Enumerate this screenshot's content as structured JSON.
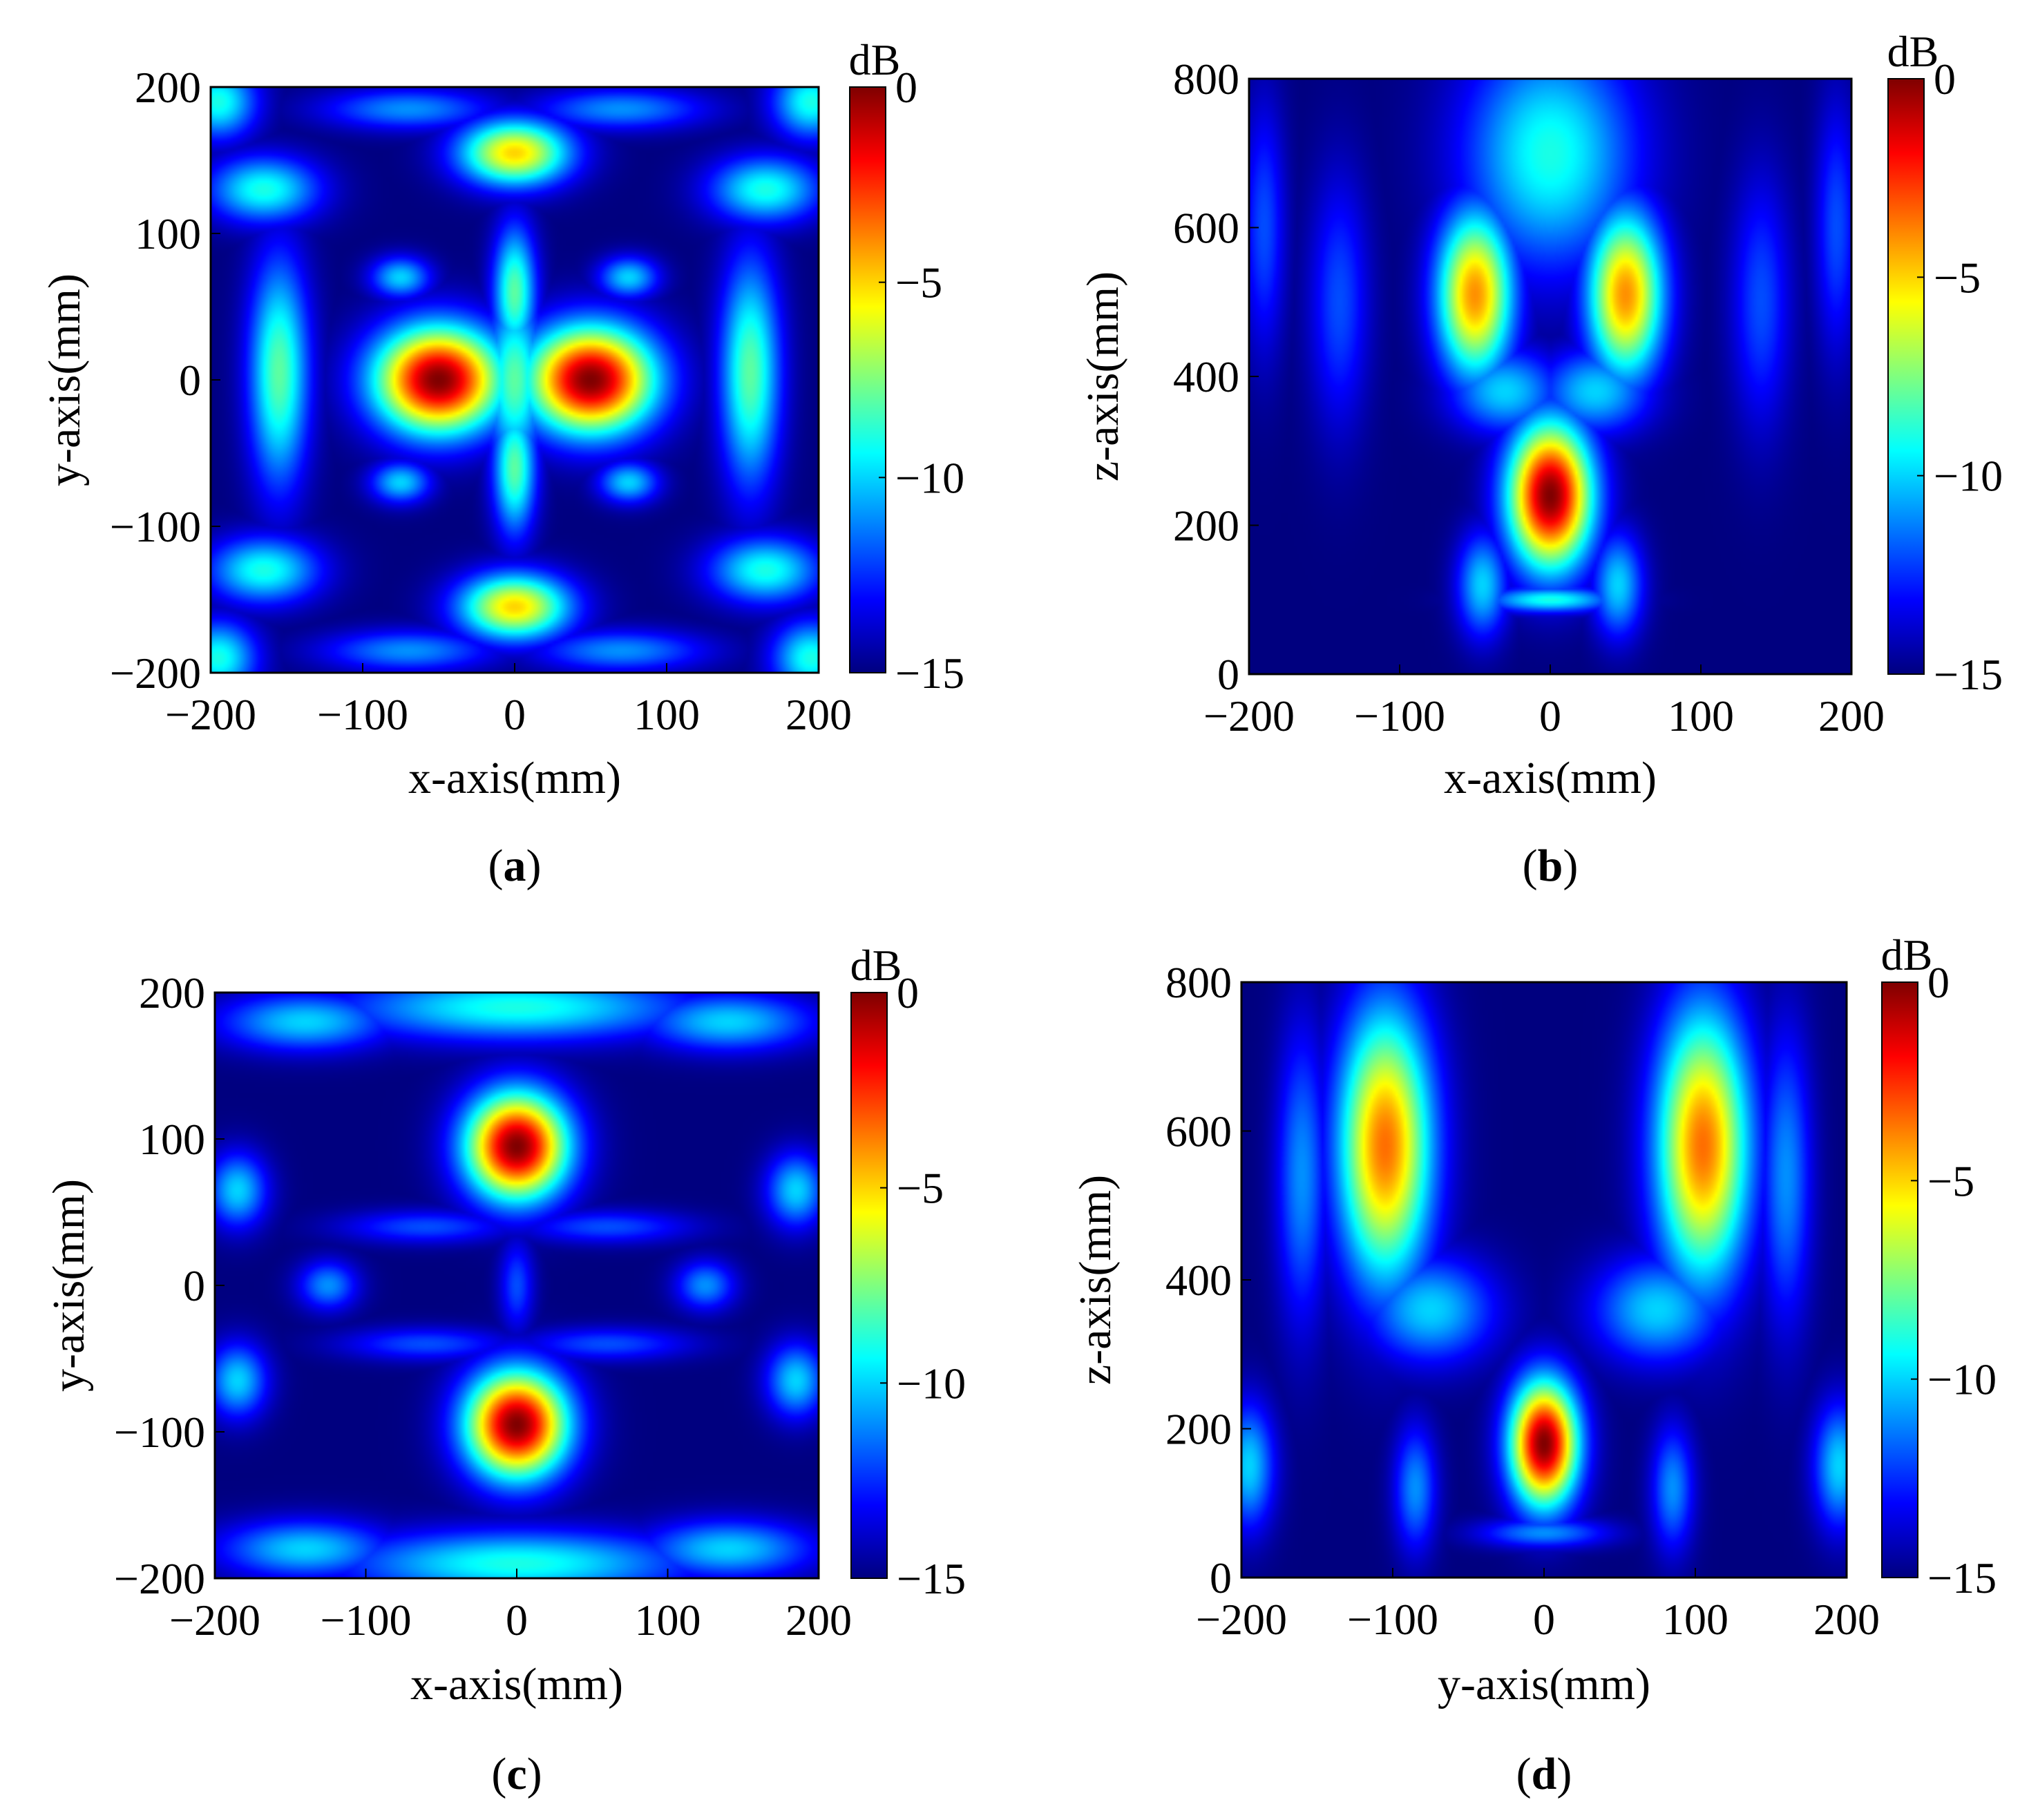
{
  "colormap": {
    "name": "jet",
    "stops": [
      "#00007f",
      "#0000ff",
      "#007fff",
      "#00ffff",
      "#7fff7f",
      "#ffff00",
      "#ff7f00",
      "#ff0000",
      "#7f0000"
    ]
  },
  "chart_data": [
    {
      "type": "heatmap",
      "panel_label": "(a)",
      "panel_letter": "a",
      "xlabel": "x-axis(mm)",
      "ylabel": "y-axis(mm)",
      "xlim": [
        -200,
        200
      ],
      "ylim": [
        -200,
        200
      ],
      "xticks": [
        -200,
        -100,
        0,
        100,
        200
      ],
      "yticks": [
        -200,
        -100,
        0,
        100,
        200
      ],
      "xtick_labels": [
        "−200",
        "−100",
        "0",
        "100",
        "200"
      ],
      "ytick_labels": [
        "−200",
        "−100",
        "0",
        "100",
        "200"
      ],
      "colorbar": {
        "label": "dB",
        "range": [
          -15,
          0
        ],
        "ticks": [
          0,
          -5,
          -10,
          -15
        ],
        "tick_labels": [
          "0",
          "−5",
          "−10",
          "−15"
        ]
      },
      "background_db": -15,
      "features": [
        {
          "x": -50,
          "y": 0,
          "sx": 30,
          "sy": 26,
          "db": 0
        },
        {
          "x": 50,
          "y": 0,
          "sx": 30,
          "sy": 26,
          "db": 0
        },
        {
          "x": 0,
          "y": 155,
          "sx": 26,
          "sy": 16,
          "db": -5
        },
        {
          "x": 0,
          "y": -155,
          "sx": 26,
          "sy": 16,
          "db": -5
        },
        {
          "x": 0,
          "y": 60,
          "sx": 10,
          "sy": 32,
          "db": -8
        },
        {
          "x": 0,
          "y": -60,
          "sx": 10,
          "sy": 32,
          "db": -8
        },
        {
          "x": 0,
          "y": 0,
          "sx": 14,
          "sy": 40,
          "db": -8
        },
        {
          "x": -155,
          "y": 5,
          "sx": 14,
          "sy": 55,
          "db": -8
        },
        {
          "x": 155,
          "y": 5,
          "sx": 14,
          "sy": 55,
          "db": -8
        },
        {
          "x": -75,
          "y": 70,
          "sx": 14,
          "sy": 10,
          "db": -10
        },
        {
          "x": 75,
          "y": 70,
          "sx": 14,
          "sy": 10,
          "db": -10
        },
        {
          "x": -75,
          "y": -70,
          "sx": 14,
          "sy": 10,
          "db": -10
        },
        {
          "x": 75,
          "y": -70,
          "sx": 14,
          "sy": 10,
          "db": -10
        },
        {
          "x": -165,
          "y": 130,
          "sx": 26,
          "sy": 16,
          "db": -9
        },
        {
          "x": 165,
          "y": 130,
          "sx": 26,
          "sy": 16,
          "db": -9
        },
        {
          "x": -165,
          "y": -130,
          "sx": 26,
          "sy": 16,
          "db": -9
        },
        {
          "x": 165,
          "y": -130,
          "sx": 26,
          "sy": 16,
          "db": -9
        },
        {
          "x": -70,
          "y": 185,
          "sx": 40,
          "sy": 10,
          "db": -11
        },
        {
          "x": 70,
          "y": 185,
          "sx": 40,
          "sy": 10,
          "db": -11
        },
        {
          "x": -70,
          "y": -185,
          "sx": 40,
          "sy": 10,
          "db": -11
        },
        {
          "x": 70,
          "y": -185,
          "sx": 40,
          "sy": 10,
          "db": -11
        },
        {
          "x": -195,
          "y": 190,
          "sx": 18,
          "sy": 18,
          "db": -9
        },
        {
          "x": 195,
          "y": 190,
          "sx": 18,
          "sy": 18,
          "db": -9
        },
        {
          "x": -195,
          "y": -190,
          "sx": 18,
          "sy": 18,
          "db": -9
        },
        {
          "x": 195,
          "y": -190,
          "sx": 18,
          "sy": 18,
          "db": -9
        }
      ]
    },
    {
      "type": "heatmap",
      "panel_label": "(b)",
      "panel_letter": "b",
      "xlabel": "x-axis(mm)",
      "ylabel": "z-axis(mm)",
      "xlim": [
        -200,
        200
      ],
      "ylim": [
        0,
        800
      ],
      "xticks": [
        -200,
        -100,
        0,
        100,
        200
      ],
      "yticks": [
        0,
        200,
        400,
        600,
        800
      ],
      "xtick_labels": [
        "−200",
        "−100",
        "0",
        "100",
        "200"
      ],
      "ytick_labels": [
        "0",
        "200",
        "400",
        "600",
        "800"
      ],
      "colorbar": {
        "label": "dB",
        "range": [
          -15,
          0
        ],
        "ticks": [
          0,
          -5,
          -10,
          -15
        ],
        "tick_labels": [
          "0",
          "−5",
          "−10",
          "−15"
        ]
      },
      "background_db": -15,
      "features": [
        {
          "x": 0,
          "y": 240,
          "sx": 20,
          "sy": 70,
          "db": 0
        },
        {
          "x": -50,
          "y": 510,
          "sx": 18,
          "sy": 80,
          "db": -4
        },
        {
          "x": 50,
          "y": 510,
          "sx": 18,
          "sy": 80,
          "db": -4
        },
        {
          "x": 0,
          "y": 700,
          "sx": 40,
          "sy": 110,
          "db": -9
        },
        {
          "x": -30,
          "y": 380,
          "sx": 26,
          "sy": 40,
          "db": -10
        },
        {
          "x": 30,
          "y": 380,
          "sx": 26,
          "sy": 40,
          "db": -10
        },
        {
          "x": -45,
          "y": 120,
          "sx": 12,
          "sy": 50,
          "db": -10
        },
        {
          "x": 45,
          "y": 120,
          "sx": 12,
          "sy": 50,
          "db": -10
        },
        {
          "x": 0,
          "y": 100,
          "sx": 30,
          "sy": 12,
          "db": -9
        },
        {
          "x": -140,
          "y": 500,
          "sx": 14,
          "sy": 120,
          "db": -12
        },
        {
          "x": 140,
          "y": 500,
          "sx": 14,
          "sy": 120,
          "db": -12
        },
        {
          "x": -190,
          "y": 600,
          "sx": 10,
          "sy": 120,
          "db": -12
        },
        {
          "x": 190,
          "y": 600,
          "sx": 10,
          "sy": 120,
          "db": -12
        }
      ]
    },
    {
      "type": "heatmap",
      "panel_label": "(c)",
      "panel_letter": "c",
      "xlabel": "x-axis(mm)",
      "ylabel": "y-axis(mm)",
      "xlim": [
        -200,
        200
      ],
      "ylim": [
        -200,
        200
      ],
      "xticks": [
        -200,
        -100,
        0,
        100,
        200
      ],
      "yticks": [
        -200,
        -100,
        0,
        100,
        200
      ],
      "xtick_labels": [
        "−200",
        "−100",
        "0",
        "100",
        "200"
      ],
      "ytick_labels": [
        "−200",
        "−100",
        "0",
        "100",
        "200"
      ],
      "colorbar": {
        "label": "dB",
        "range": [
          -15,
          0
        ],
        "ticks": [
          0,
          -5,
          -10,
          -15
        ],
        "tick_labels": [
          "0",
          "−5",
          "−10",
          "−15"
        ]
      },
      "background_db": -15,
      "features": [
        {
          "x": 0,
          "y": 95,
          "sx": 24,
          "sy": 26,
          "db": 0
        },
        {
          "x": 0,
          "y": -95,
          "sx": 24,
          "sy": 26,
          "db": 0
        },
        {
          "x": 0,
          "y": 190,
          "sx": 80,
          "sy": 16,
          "db": -9
        },
        {
          "x": 0,
          "y": -190,
          "sx": 80,
          "sy": 16,
          "db": -9
        },
        {
          "x": -140,
          "y": 180,
          "sx": 40,
          "sy": 14,
          "db": -10
        },
        {
          "x": 140,
          "y": 180,
          "sx": 40,
          "sy": 14,
          "db": -10
        },
        {
          "x": -140,
          "y": -180,
          "sx": 40,
          "sy": 14,
          "db": -10
        },
        {
          "x": 140,
          "y": -180,
          "sx": 40,
          "sy": 14,
          "db": -10
        },
        {
          "x": 0,
          "y": 0,
          "sx": 8,
          "sy": 22,
          "db": -12
        },
        {
          "x": -125,
          "y": 0,
          "sx": 14,
          "sy": 12,
          "db": -11
        },
        {
          "x": 125,
          "y": 0,
          "sx": 14,
          "sy": 12,
          "db": -11
        },
        {
          "x": -185,
          "y": 65,
          "sx": 14,
          "sy": 18,
          "db": -10
        },
        {
          "x": 185,
          "y": 65,
          "sx": 14,
          "sy": 18,
          "db": -10
        },
        {
          "x": -185,
          "y": -65,
          "sx": 14,
          "sy": 18,
          "db": -10
        },
        {
          "x": 185,
          "y": -65,
          "sx": 14,
          "sy": 18,
          "db": -10
        },
        {
          "x": -60,
          "y": 40,
          "sx": 40,
          "sy": 8,
          "db": -12
        },
        {
          "x": 60,
          "y": 40,
          "sx": 40,
          "sy": 8,
          "db": -12
        },
        {
          "x": -60,
          "y": -40,
          "sx": 40,
          "sy": 8,
          "db": -12
        },
        {
          "x": 60,
          "y": -40,
          "sx": 40,
          "sy": 8,
          "db": -12
        }
      ]
    },
    {
      "type": "heatmap",
      "panel_label": "(d)",
      "panel_letter": "d",
      "xlabel": "y-axis(mm)",
      "ylabel": "z-axis(mm)",
      "xlim": [
        -200,
        200
      ],
      "ylim": [
        0,
        800
      ],
      "xticks": [
        -200,
        -100,
        0,
        100,
        200
      ],
      "yticks": [
        0,
        200,
        400,
        600,
        800
      ],
      "xtick_labels": [
        "−200",
        "−100",
        "0",
        "100",
        "200"
      ],
      "ytick_labels": [
        "0",
        "200",
        "400",
        "600",
        "800"
      ],
      "colorbar": {
        "label": "dB",
        "range": [
          -15,
          0
        ],
        "ticks": [
          0,
          -5,
          -10,
          -15
        ],
        "tick_labels": [
          "0",
          "−5",
          "−10",
          "−15"
        ]
      },
      "background_db": -15,
      "features": [
        {
          "x": 0,
          "y": 180,
          "sx": 16,
          "sy": 60,
          "db": 0
        },
        {
          "x": -105,
          "y": 580,
          "sx": 22,
          "sy": 130,
          "db": -3.5
        },
        {
          "x": 105,
          "y": 580,
          "sx": 22,
          "sy": 130,
          "db": -3.5
        },
        {
          "x": -75,
          "y": 360,
          "sx": 30,
          "sy": 50,
          "db": -10
        },
        {
          "x": 75,
          "y": 360,
          "sx": 30,
          "sy": 50,
          "db": -10
        },
        {
          "x": -160,
          "y": 540,
          "sx": 12,
          "sy": 140,
          "db": -11
        },
        {
          "x": 160,
          "y": 540,
          "sx": 12,
          "sy": 140,
          "db": -11
        },
        {
          "x": -195,
          "y": 150,
          "sx": 12,
          "sy": 60,
          "db": -10
        },
        {
          "x": 195,
          "y": 150,
          "sx": 12,
          "sy": 60,
          "db": -10
        },
        {
          "x": -85,
          "y": 120,
          "sx": 10,
          "sy": 60,
          "db": -11
        },
        {
          "x": 85,
          "y": 120,
          "sx": 10,
          "sy": 60,
          "db": -11
        },
        {
          "x": 0,
          "y": 60,
          "sx": 30,
          "sy": 14,
          "db": -11
        }
      ]
    }
  ]
}
